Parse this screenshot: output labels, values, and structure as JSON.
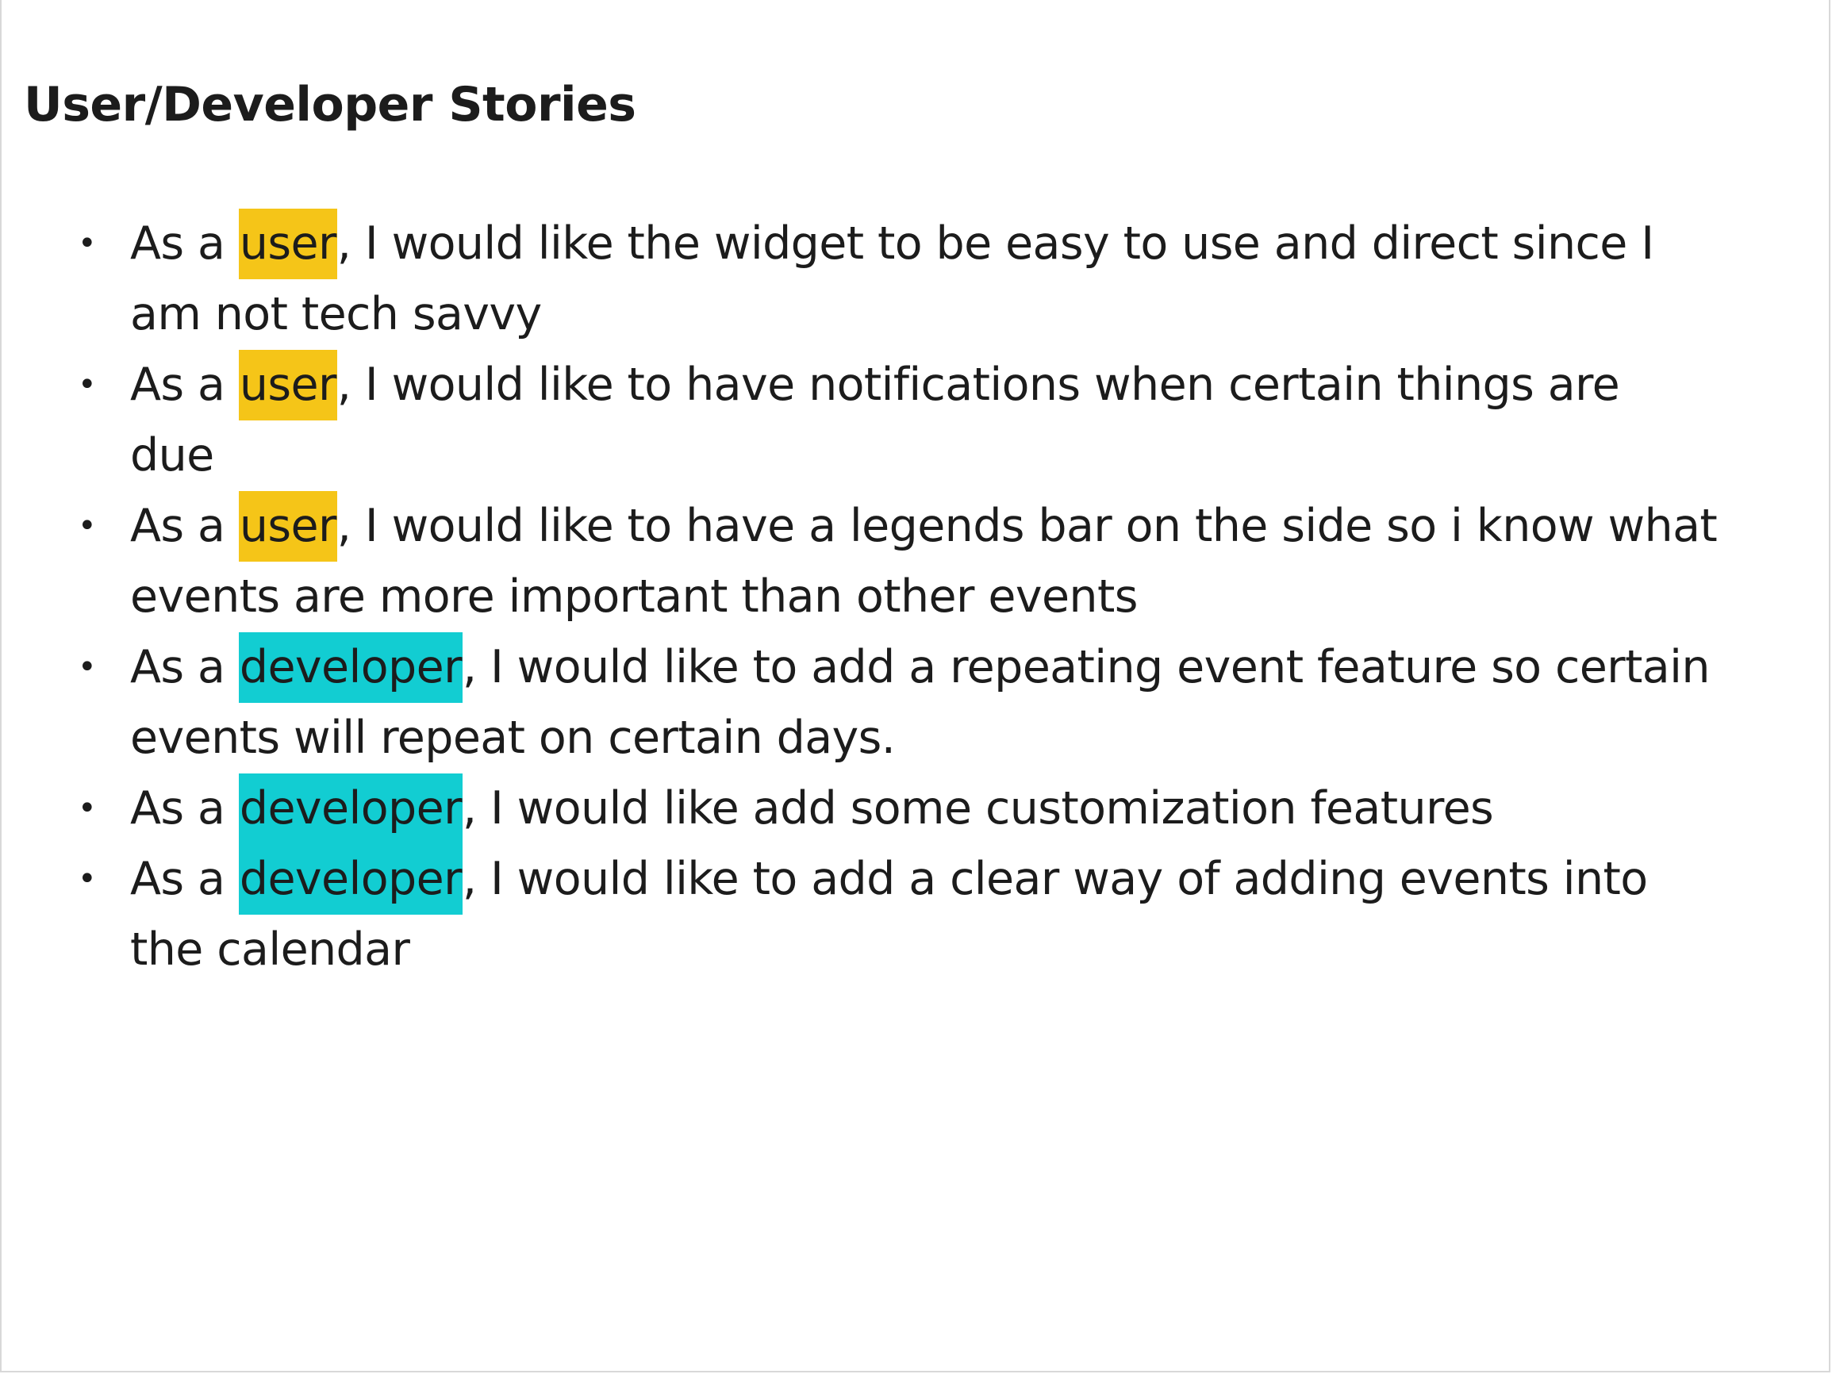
{
  "title": "User/Developer Stories",
  "colors": {
    "user_highlight": "#f5c518",
    "developer_highlight": "#12cdd2",
    "text": "#1c1c1c"
  },
  "stories": [
    {
      "prefix": "As a ",
      "role": "user",
      "role_color": "user",
      "line1": ", I would like the widget to be easy to use and direct since I",
      "line2": "am not tech savvy"
    },
    {
      "prefix": "As a ",
      "role": "user",
      "role_color": "user",
      "line1": ", I would like to have notifications when certain things are",
      "line2": "due"
    },
    {
      "prefix": "As a ",
      "role": "user",
      "role_color": "user",
      "line1": ", I would like to have a legends bar on the side so i know what",
      "line2": "events are more important than other events"
    },
    {
      "prefix": "As a ",
      "role": "developer",
      "role_color": "developer",
      "line1": ", I would like to add a repeating event feature so certain",
      "line2": "events will repeat on certain days."
    },
    {
      "prefix": "As a ",
      "role": "developer",
      "role_color": "developer",
      "line1": ", I would like add some customization features",
      "line2": ""
    },
    {
      "prefix": "As a ",
      "role": "developer",
      "role_color": "developer",
      "line1": ", I would like to add a clear way of adding events into",
      "line2": "the calendar"
    }
  ]
}
